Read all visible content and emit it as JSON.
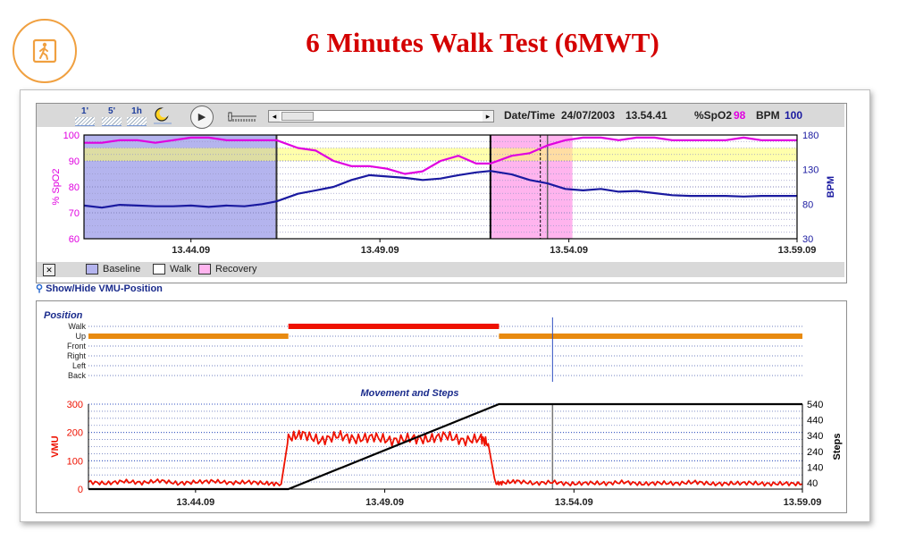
{
  "title": "6 Minutes Walk Test (6MWT)",
  "toolbar": {
    "zoom_buttons": [
      "1'",
      "5'",
      "1h"
    ],
    "moon_icon": "moon-icon",
    "date_label": "Date/Time",
    "date_value": "24/07/2003",
    "time_value": "13.54.41",
    "spo2_label": "%SpO2",
    "spo2_value": "98",
    "bpm_label": "BPM",
    "bpm_value": "100",
    "scroll_left": "◂",
    "scroll_right": "▸"
  },
  "legend": {
    "close_label": "✕",
    "items": [
      "Baseline",
      "Walk",
      "Recovery"
    ],
    "colors": {
      "baseline": "#b4b4ee",
      "walk": "#ffffff",
      "recovery": "#ffb4ee"
    }
  },
  "vmu_link": "Show/Hide VMU-Position",
  "colors": {
    "spo2": "#e000e0",
    "bpm": "#1a1aa0",
    "vmu": "#ee1100",
    "steps": "#000000",
    "title": "#d40000"
  },
  "chart_data": [
    {
      "type": "line",
      "x_ticks": [
        "13.44.09",
        "13.49.09",
        "13.54.09",
        "13.59.09"
      ],
      "x_range": [
        0,
        20
      ],
      "phases": [
        {
          "name": "Baseline",
          "start": 0,
          "end": 5.4
        },
        {
          "name": "Walk",
          "start": 5.4,
          "end": 11.4
        },
        {
          "name": "Recovery",
          "start": 11.4,
          "end": 13.7
        }
      ],
      "cursor": 13.0,
      "y_left": {
        "label": "% SpO2",
        "range": [
          60,
          100
        ],
        "ticks": [
          60,
          70,
          80,
          90,
          100
        ]
      },
      "y_right": {
        "label": "BPM",
        "range": [
          30,
          180
        ],
        "ticks": [
          30,
          80,
          130,
          180
        ]
      },
      "series": [
        {
          "name": "%SpO2",
          "axis": "left",
          "x": [
            0,
            0.5,
            1,
            1.5,
            2,
            2.5,
            3,
            3.5,
            4,
            4.5,
            5,
            5.4,
            6,
            6.5,
            7,
            7.5,
            8,
            8.5,
            9,
            9.5,
            10,
            10.5,
            11,
            11.4,
            12,
            12.5,
            13,
            13.5,
            14,
            14.5,
            15,
            15.5,
            16,
            16.5,
            17,
            17.5,
            18,
            18.5,
            19,
            19.5,
            20
          ],
          "y": [
            97,
            97,
            98,
            98,
            97,
            98,
            99,
            99,
            98,
            98,
            98,
            98,
            95,
            94,
            90,
            88,
            88,
            87,
            85,
            86,
            90,
            92,
            89,
            89,
            92,
            93,
            96,
            98,
            99,
            99,
            98,
            99,
            99,
            98,
            98,
            98,
            98,
            99,
            98,
            98,
            98
          ]
        },
        {
          "name": "BPM",
          "axis": "right",
          "x": [
            0,
            0.5,
            1,
            1.5,
            2,
            2.5,
            3,
            3.5,
            4,
            4.5,
            5,
            5.4,
            6,
            6.5,
            7,
            7.5,
            8,
            8.5,
            9,
            9.5,
            10,
            10.5,
            11,
            11.4,
            12,
            12.5,
            13,
            13.5,
            14,
            14.5,
            15,
            15.5,
            16,
            16.5,
            17,
            17.5,
            18,
            18.5,
            19,
            19.5,
            20
          ],
          "y": [
            78,
            75,
            79,
            78,
            77,
            77,
            78,
            76,
            78,
            77,
            80,
            84,
            95,
            100,
            105,
            115,
            122,
            120,
            118,
            115,
            117,
            122,
            126,
            128,
            123,
            115,
            110,
            102,
            100,
            102,
            98,
            99,
            96,
            93,
            92,
            92,
            92,
            91,
            92,
            92,
            92
          ]
        }
      ]
    },
    {
      "type": "line",
      "title": "Position",
      "categories": [
        "Walk",
        "Up",
        "Front",
        "Right",
        "Left",
        "Back"
      ],
      "segments": [
        {
          "category": "Up",
          "start": 0,
          "end": 5.6
        },
        {
          "category": "Walk",
          "start": 5.6,
          "end": 11.5
        },
        {
          "category": "Up",
          "start": 11.5,
          "end": 20
        }
      ],
      "cursor": 13.0
    },
    {
      "type": "line",
      "title": "Movement and Steps",
      "x_ticks": [
        "13.44.09",
        "13.49.09",
        "13.54.09",
        "13.59.09"
      ],
      "x_range": [
        0,
        20
      ],
      "cursor": 13.0,
      "y_left": {
        "label": "VMU",
        "range": [
          0,
          300
        ],
        "ticks": [
          0,
          100,
          200,
          300
        ]
      },
      "y_right": {
        "label": "Steps",
        "range": [
          0,
          540
        ],
        "ticks": [
          40,
          140,
          240,
          340,
          440,
          540
        ]
      },
      "series": [
        {
          "name": "VMU",
          "axis": "left",
          "x": [
            0,
            0.5,
            1,
            1.5,
            2,
            2.5,
            3,
            3.5,
            4,
            4.5,
            5,
            5.4,
            5.6,
            6,
            6.5,
            7,
            7.5,
            8,
            8.5,
            9,
            9.5,
            10,
            10.5,
            11,
            11.2,
            11.4,
            11.6,
            12,
            12.5,
            13,
            13.5,
            14,
            14.5,
            15,
            15.5,
            16,
            16.5,
            17,
            17.5,
            18,
            18.5,
            19,
            19.5,
            20
          ],
          "y": [
            25,
            20,
            28,
            22,
            30,
            20,
            25,
            28,
            22,
            25,
            20,
            18,
            180,
            195,
            170,
            190,
            175,
            185,
            170,
            180,
            175,
            190,
            170,
            180,
            160,
            20,
            22,
            28,
            20,
            25,
            18,
            22,
            20,
            25,
            18,
            22,
            20,
            25,
            18,
            20,
            22,
            18,
            20,
            18
          ]
        },
        {
          "name": "Steps",
          "axis": "right",
          "x": [
            0,
            5.6,
            11.5,
            20
          ],
          "y": [
            0,
            0,
            540,
            540
          ]
        }
      ]
    }
  ]
}
